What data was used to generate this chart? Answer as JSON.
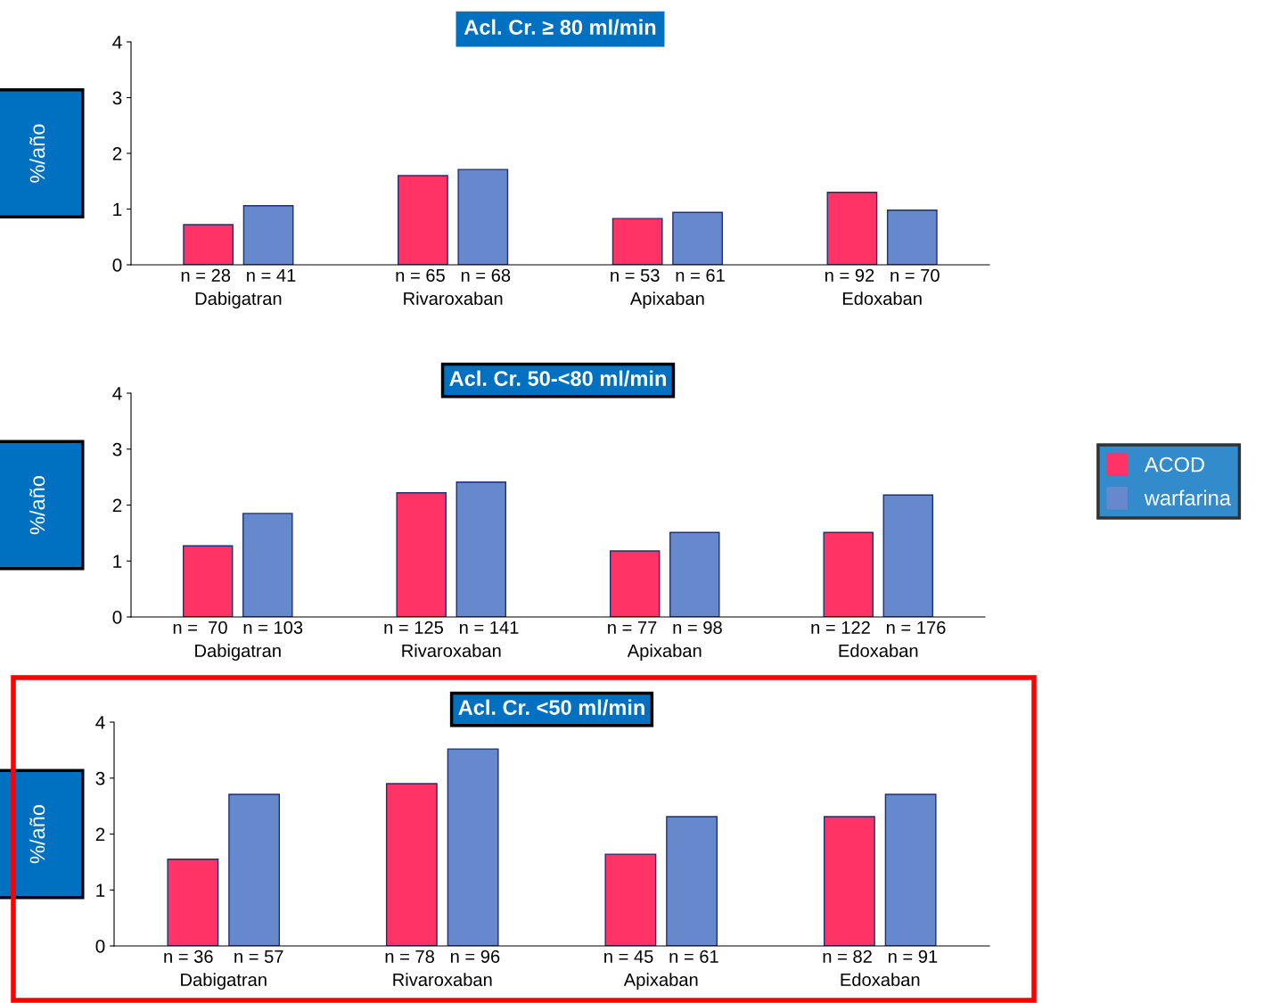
{
  "chart_data": [
    {
      "type": "bar",
      "title": "Acl. Cr. ≥ 80 ml/min",
      "ylabel": "%/año",
      "categories": [
        "n = 28   n = 41\nDabigatran",
        "n = 65   n = 68\nRivaroxaban",
        "n = 53   n = 61\nApixaban",
        "n = 92   n = 70\nEdoxaban"
      ],
      "ylim": [
        0,
        4
      ],
      "yticks": [
        0,
        1,
        2,
        3,
        4
      ],
      "grid": false,
      "series": [
        {
          "color": "#ff3366",
          "values": [
            0.72,
            1.6,
            0.83,
            1.3
          ]
        },
        {
          "color": "#6688cc",
          "values": [
            1.06,
            1.71,
            0.94,
            0.98
          ]
        }
      ]
    },
    {
      "type": "bar",
      "title": "Acl. Cr. 50-<80 ml/min",
      "ylabel": "%/año",
      "categories": [
        "n =  70   n = 103\nDabigatran",
        "n = 125   n = 141\nRivaroxaban",
        "n = 77   n = 98\nApixaban",
        "n = 122   n = 176\nEdoxaban"
      ],
      "ylim": [
        0,
        4
      ],
      "yticks": [
        0,
        1,
        2,
        3,
        4
      ],
      "grid": false,
      "legend": "right",
      "series": [
        {
          "name": "ACOD",
          "color": "#ff3366",
          "values": [
            1.27,
            2.22,
            1.18,
            1.51
          ]
        },
        {
          "name": "warfarina",
          "color": "#6688cc",
          "values": [
            1.85,
            2.41,
            1.51,
            2.18
          ]
        }
      ]
    },
    {
      "type": "bar",
      "title": "Acl. Cr. <50 ml/min",
      "ylabel": "%/año",
      "categories": [
        "n = 36    n = 57\nDabigatran",
        "n = 78   n = 96\nRivaroxaban",
        "n = 45   n = 61\nApixaban",
        "n = 82   n = 91\nEdoxaban"
      ],
      "ylim": [
        0,
        4
      ],
      "yticks": [
        0,
        1,
        2,
        3,
        4
      ],
      "grid": false,
      "series": [
        {
          "color": "#ff3366",
          "values": [
            1.55,
            2.9,
            1.64,
            2.31
          ]
        },
        {
          "color": "#6688cc",
          "values": [
            2.71,
            3.52,
            2.31,
            2.71
          ]
        }
      ]
    }
  ]
}
